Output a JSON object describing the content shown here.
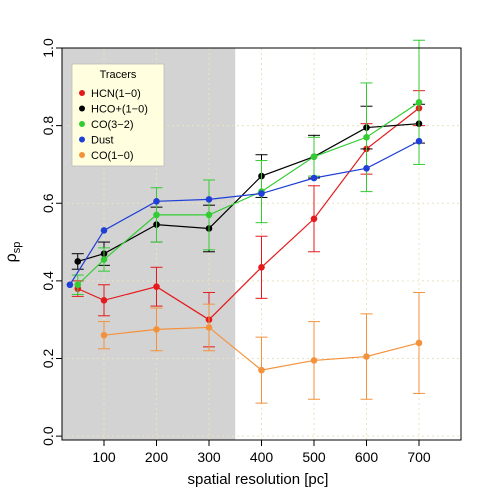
{
  "chart_data": {
    "type": "line",
    "title": "",
    "xlabel": "spatial resolution [pc]",
    "ylabel_main": "ρ",
    "ylabel_sub": "sp",
    "xlim": [
      20,
      780
    ],
    "ylim": [
      -0.01,
      1.0
    ],
    "x_ticks": [
      100,
      200,
      300,
      400,
      500,
      600,
      700
    ],
    "x_tick_labels": [
      "100",
      "200",
      "300",
      "400",
      "500",
      "600",
      "700"
    ],
    "y_ticks": [
      0.0,
      0.2,
      0.4,
      0.6,
      0.8,
      1.0
    ],
    "y_tick_labels": [
      "0.0",
      "0.2",
      "0.4",
      "0.6",
      "0.8",
      "1.0"
    ],
    "grid": true,
    "shaded_region": {
      "x_from": 20,
      "x_to": 350,
      "color": "#d3d3d3"
    },
    "legend": {
      "title": "Tracers",
      "placement": "top-left",
      "background": "#ffffe0"
    },
    "series": [
      {
        "name": "HCN(1−0)",
        "color": "#e41a1c",
        "x": [
          50,
          100,
          200,
          300,
          400,
          500,
          600,
          700
        ],
        "y": [
          0.38,
          0.35,
          0.385,
          0.3,
          0.435,
          0.56,
          0.74,
          0.845
        ],
        "err": [
          0.02,
          0.04,
          0.05,
          0.07,
          0.08,
          0.085,
          0.065,
          0.045
        ]
      },
      {
        "name": "HCO+(1−0)",
        "color": "#000000",
        "x": [
          50,
          100,
          200,
          300,
          400,
          500,
          600,
          700
        ],
        "y": [
          0.45,
          0.47,
          0.545,
          0.535,
          0.67,
          0.72,
          0.795,
          0.805
        ],
        "err": [
          0.02,
          0.03,
          0.045,
          0.06,
          0.055,
          0.055,
          0.055,
          0.05
        ]
      },
      {
        "name": "CO(3−2)",
        "color": "#33cc33",
        "x": [
          50,
          100,
          200,
          300,
          400,
          500,
          600,
          700
        ],
        "y": [
          0.39,
          0.455,
          0.57,
          0.57,
          0.63,
          0.72,
          0.77,
          0.86
        ],
        "err": [
          0.025,
          0.03,
          0.07,
          0.09,
          0.08,
          0.05,
          0.14,
          0.16
        ]
      },
      {
        "name": "Dust",
        "color": "#1f3fd6",
        "x": [
          35,
          100,
          200,
          300,
          400,
          500,
          600,
          700
        ],
        "y": [
          0.39,
          0.53,
          0.605,
          0.61,
          0.625,
          0.665,
          0.69,
          0.76
        ],
        "err": [
          0,
          0,
          0,
          0,
          0,
          0,
          0,
          0
        ]
      },
      {
        "name": "CO(1−0)",
        "color": "#f4923c",
        "x": [
          100,
          200,
          300,
          400,
          500,
          600,
          700
        ],
        "y": [
          0.26,
          0.275,
          0.28,
          0.17,
          0.195,
          0.205,
          0.24
        ],
        "err": [
          0.035,
          0.055,
          0.06,
          0.085,
          0.1,
          0.11,
          0.13
        ]
      }
    ]
  }
}
